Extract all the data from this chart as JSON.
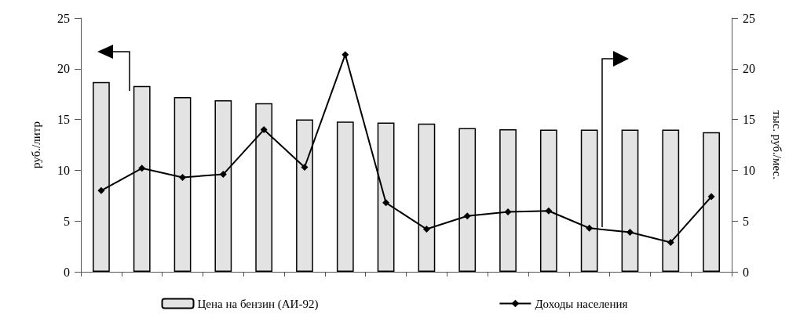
{
  "chart_data": {
    "type": "bar",
    "ylabel": "руб./литр",
    "y2label": "тыс. руб./мес.",
    "categories": [
      null,
      null,
      null,
      null,
      null,
      null,
      null,
      null,
      null,
      null,
      null,
      null,
      null,
      null,
      null,
      null
    ],
    "series": [
      {
        "name": "Цена на бензин (АИ-92)",
        "color": "#e3e3e3",
        "values": [
          18.7,
          18.3,
          17.2,
          16.9,
          16.6,
          15.0,
          14.8,
          14.7,
          14.6,
          14.15,
          14.05,
          14.0,
          14.0,
          14.0,
          14.0,
          13.75
        ]
      },
      {
        "name": "Доходы населения",
        "type": "line",
        "axis": "y2",
        "color": "#000000",
        "marker": "diamond",
        "values": [
          8.0,
          10.2,
          9.3,
          9.6,
          14.0,
          10.3,
          21.4,
          6.8,
          4.2,
          5.5,
          5.9,
          6.0,
          4.3,
          3.9,
          2.9,
          7.4
        ]
      }
    ],
    "ylim": [
      0,
      25
    ],
    "yticks": [
      0,
      5,
      10,
      15,
      20,
      25
    ],
    "y2lim": [
      0,
      25
    ],
    "y2ticks": [
      0,
      5,
      10,
      15,
      20,
      25
    ],
    "grid": false,
    "legend": "bottom"
  }
}
